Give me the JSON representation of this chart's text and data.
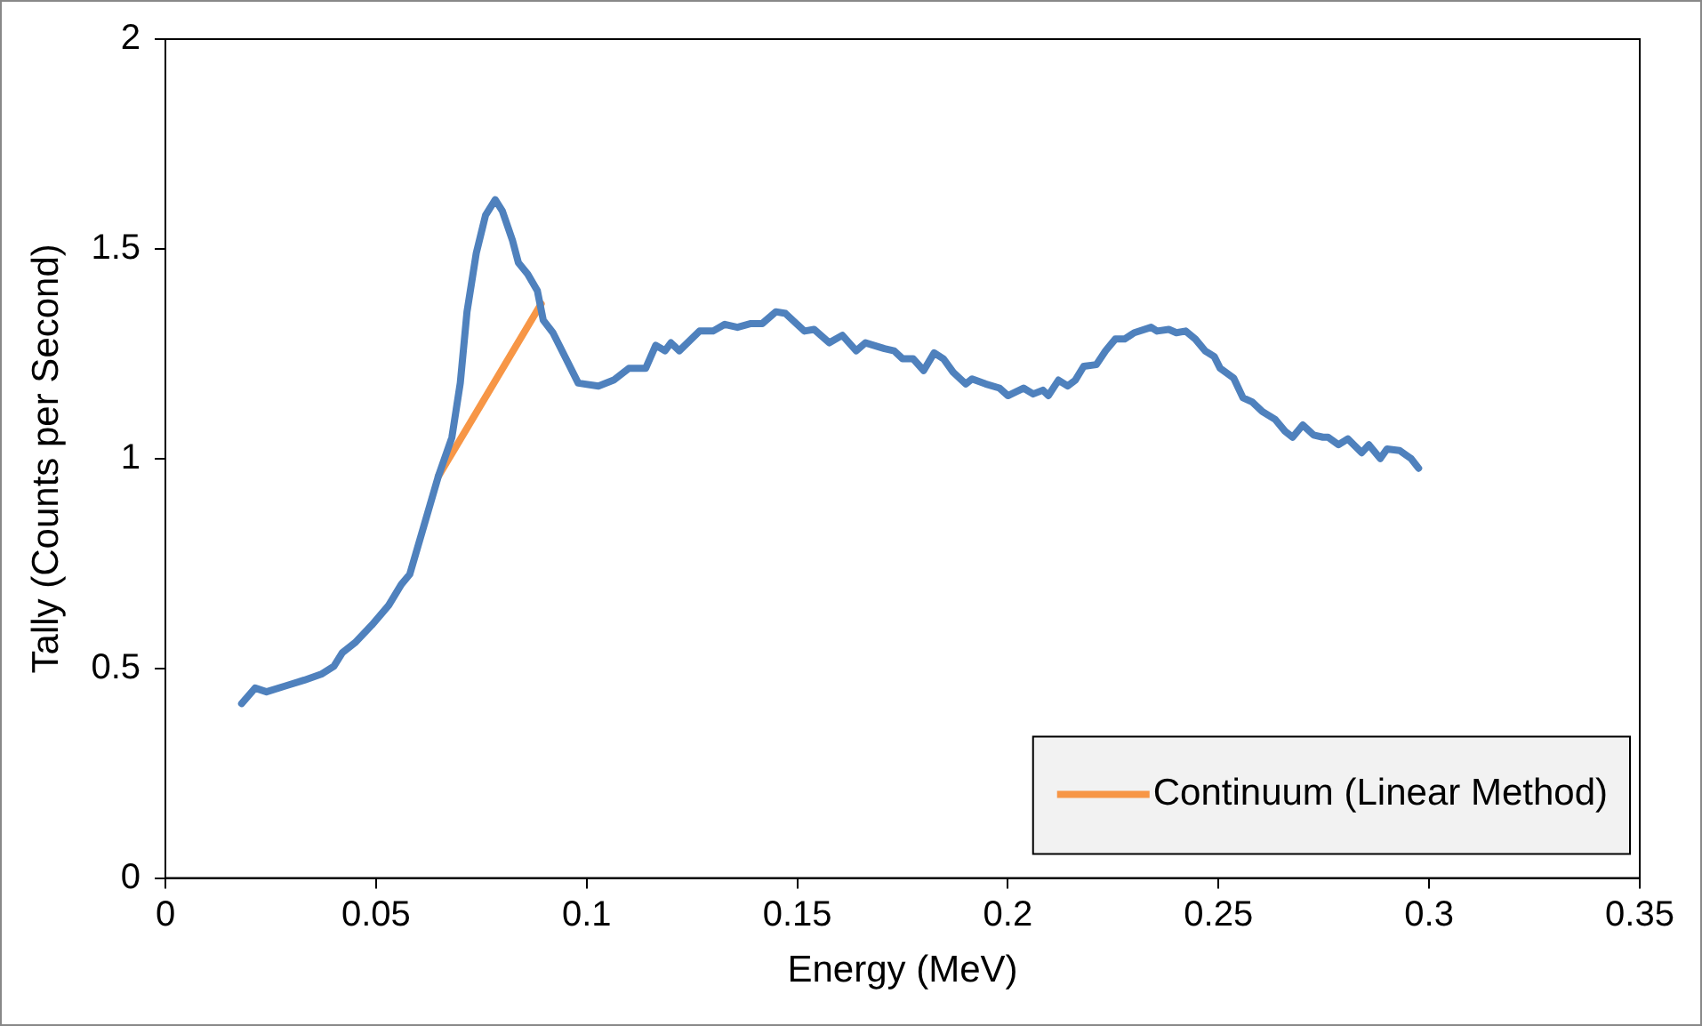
{
  "chart_data": {
    "type": "line",
    "xlabel": "Energy (MeV)",
    "ylabel": "Tally (Counts per Second)",
    "xlim": [
      0,
      0.35
    ],
    "xticks": [
      0,
      0.05,
      0.1,
      0.15,
      0.2,
      0.25,
      0.3,
      0.35
    ],
    "ylim": [
      0,
      2
    ],
    "yticks": [
      0,
      0.5,
      1,
      1.5,
      2
    ],
    "grid": false,
    "legend": "bottom right",
    "marker": "none",
    "line_style": "solid",
    "series": [
      {
        "color": "#4f81bd",
        "x": [
          0.0181,
          0.0213,
          0.024,
          0.0285,
          0.033,
          0.037,
          0.04,
          0.042,
          0.045,
          0.049,
          0.053,
          0.056,
          0.058,
          0.061,
          0.0648,
          0.068,
          0.07,
          0.0716,
          0.0738,
          0.076,
          0.0783,
          0.08,
          0.0824,
          0.0838,
          0.086,
          0.0883,
          0.0897,
          0.092,
          0.095,
          0.098,
          0.1028,
          0.1064,
          0.11,
          0.114,
          0.1164,
          0.1186,
          0.12,
          0.122,
          0.1268,
          0.13,
          0.1328,
          0.1358,
          0.139,
          0.1417,
          0.1449,
          0.1472,
          0.1517,
          0.154,
          0.1576,
          0.1607,
          0.164,
          0.1662,
          0.1707,
          0.173,
          0.175,
          0.1775,
          0.18,
          0.1825,
          0.1847,
          0.187,
          0.19,
          0.1915,
          0.1947,
          0.198,
          0.2,
          0.2037,
          0.206,
          0.2083,
          0.2096,
          0.212,
          0.2142,
          0.216,
          0.218,
          0.221,
          0.2232,
          0.2255,
          0.2277,
          0.23,
          0.234,
          0.2354,
          0.2382,
          0.24,
          0.2422,
          0.2445,
          0.2468,
          0.249,
          0.2504,
          0.2536,
          0.2558,
          0.258,
          0.2604,
          0.2635,
          0.2658,
          0.2676,
          0.27,
          0.2726,
          0.2748,
          0.276,
          0.2785,
          0.2807,
          0.284,
          0.2857,
          0.2884,
          0.29,
          0.293,
          0.2957,
          0.2975
        ],
        "values": [
          0.416,
          0.453,
          0.444,
          0.458,
          0.472,
          0.486,
          0.505,
          0.537,
          0.561,
          0.603,
          0.65,
          0.7,
          0.724,
          0.827,
          0.958,
          1.05,
          1.18,
          1.35,
          1.49,
          1.58,
          1.617,
          1.59,
          1.52,
          1.467,
          1.44,
          1.4,
          1.33,
          1.3,
          1.24,
          1.18,
          1.173,
          1.187,
          1.215,
          1.215,
          1.27,
          1.257,
          1.276,
          1.257,
          1.304,
          1.304,
          1.32,
          1.313,
          1.322,
          1.322,
          1.35,
          1.346,
          1.304,
          1.308,
          1.276,
          1.294,
          1.257,
          1.276,
          1.262,
          1.257,
          1.238,
          1.238,
          1.21,
          1.252,
          1.238,
          1.206,
          1.178,
          1.19,
          1.178,
          1.168,
          1.15,
          1.168,
          1.154,
          1.163,
          1.15,
          1.187,
          1.173,
          1.187,
          1.22,
          1.224,
          1.257,
          1.285,
          1.285,
          1.3,
          1.313,
          1.304,
          1.308,
          1.3,
          1.304,
          1.285,
          1.257,
          1.243,
          1.215,
          1.192,
          1.145,
          1.135,
          1.112,
          1.093,
          1.065,
          1.051,
          1.08,
          1.056,
          1.051,
          1.051,
          1.033,
          1.047,
          1.014,
          1.033,
          1.0,
          1.023,
          1.019,
          1.0,
          0.977
        ]
      },
      {
        "name": "Continuum (Linear Method)",
        "color": "#f79646",
        "x": [
          0.0648,
          0.0892
        ],
        "values": [
          0.958,
          1.369
        ]
      }
    ]
  }
}
